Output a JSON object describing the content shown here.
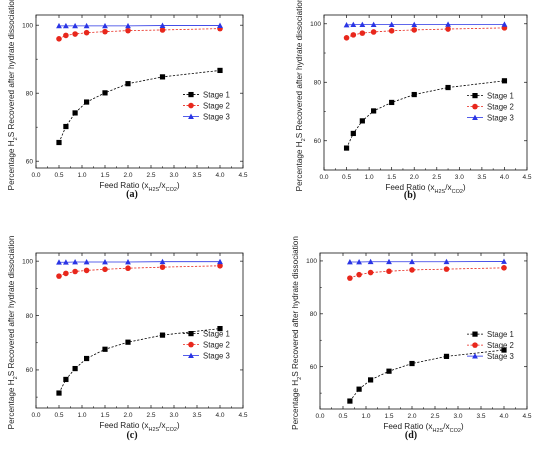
{
  "chart_data": [
    {
      "type": "scatter",
      "panel": "(a)",
      "xlabel": "Feed Ratio (x_H2S/x_CO2)",
      "ylabel": "Percentage H2S Recovered after hydrate dissociation",
      "xlim": [
        0.0,
        4.5
      ],
      "ylim": [
        58,
        103
      ],
      "xticks": [
        "0.0",
        "0.5",
        "1.0",
        "1.5",
        "2.0",
        "2.5",
        "3.0",
        "3.5",
        "4.0",
        "4.5"
      ],
      "yticks": [
        "60",
        "80",
        "100"
      ],
      "ytick_values": [
        60,
        80,
        100
      ],
      "grid": false,
      "legend_position": "right",
      "x": [
        0.5,
        0.65,
        0.85,
        1.1,
        1.5,
        2.0,
        2.75,
        4.0
      ],
      "series": [
        {
          "name": "Stage 1",
          "color": "#000000",
          "marker": "square",
          "values": [
            65.5,
            70.2,
            74.2,
            77.4,
            80.1,
            82.8,
            84.8,
            86.7
          ]
        },
        {
          "name": "Stage 2",
          "color": "#e8271c",
          "marker": "circle",
          "values": [
            96.0,
            97.0,
            97.4,
            97.8,
            98.1,
            98.4,
            98.6,
            99.0
          ]
        },
        {
          "name": "Stage 3",
          "color": "#2a35e5",
          "marker": "triangle",
          "values": [
            99.8,
            99.8,
            99.8,
            99.8,
            99.8,
            99.8,
            99.9,
            99.9
          ]
        }
      ]
    },
    {
      "type": "scatter",
      "panel": "(b)",
      "xlabel": "Feed Ratio (x_H2S/x_CO2)",
      "ylabel": "Percentage H2S Recovered after hydrate dissociation",
      "xlim": [
        0.0,
        4.5
      ],
      "ylim": [
        50,
        103
      ],
      "xticks": [
        "0.0",
        "0.5",
        "1.0",
        "1.5",
        "2.0",
        "2.5",
        "3.0",
        "3.5",
        "4.0",
        "4.5"
      ],
      "yticks": [
        "60",
        "80",
        "100"
      ],
      "ytick_values": [
        60,
        80,
        100
      ],
      "grid": false,
      "legend_position": "right",
      "x": [
        0.5,
        0.65,
        0.85,
        1.1,
        1.5,
        2.0,
        2.75,
        4.0
      ],
      "series": [
        {
          "name": "Stage 1",
          "color": "#000000",
          "marker": "square",
          "values": [
            57.5,
            62.5,
            66.8,
            70.2,
            73.1,
            75.8,
            78.2,
            80.5
          ]
        },
        {
          "name": "Stage 2",
          "color": "#e8271c",
          "marker": "circle",
          "values": [
            95.2,
            96.2,
            96.8,
            97.2,
            97.6,
            97.9,
            98.2,
            98.6
          ]
        },
        {
          "name": "Stage 3",
          "color": "#2a35e5",
          "marker": "triangle",
          "values": [
            99.6,
            99.7,
            99.7,
            99.7,
            99.7,
            99.7,
            99.8,
            99.8
          ]
        }
      ]
    },
    {
      "type": "scatter",
      "panel": "(c)",
      "xlabel": "Feed Ratio (x_H2S/x_CO2)",
      "ylabel": "Percentage H2S Recovered after hydrate dissociation",
      "xlim": [
        0.0,
        4.5
      ],
      "ylim": [
        46,
        103
      ],
      "xticks": [
        "0.0",
        "0.5",
        "1.0",
        "1.5",
        "2.0",
        "2.5",
        "3.0",
        "3.5",
        "4.0",
        "4.5"
      ],
      "yticks": [
        "60",
        "80",
        "100"
      ],
      "ytick_values": [
        60,
        80,
        100
      ],
      "grid": false,
      "legend_position": "right",
      "x": [
        0.5,
        0.65,
        0.85,
        1.1,
        1.5,
        2.0,
        2.75,
        4.0
      ],
      "series": [
        {
          "name": "Stage 1",
          "color": "#000000",
          "marker": "square",
          "values": [
            51.5,
            56.5,
            60.5,
            64.2,
            67.6,
            70.2,
            72.8,
            75.2
          ]
        },
        {
          "name": "Stage 2",
          "color": "#e8271c",
          "marker": "circle",
          "values": [
            94.5,
            95.5,
            96.2,
            96.6,
            97.0,
            97.4,
            97.8,
            98.3
          ]
        },
        {
          "name": "Stage 3",
          "color": "#2a35e5",
          "marker": "triangle",
          "values": [
            99.6,
            99.6,
            99.7,
            99.7,
            99.7,
            99.7,
            99.8,
            99.8
          ]
        }
      ]
    },
    {
      "type": "scatter",
      "panel": "(d)",
      "xlabel": "Feed Ratio (x_H2S/x_CO2)",
      "ylabel": "Percentage H2S Recovered after hydrate dissociation",
      "xlim": [
        0.0,
        4.5
      ],
      "ylim": [
        44,
        103
      ],
      "xticks": [
        "0.0",
        "0.5",
        "1.0",
        "1.5",
        "2.0",
        "2.5",
        "3.0",
        "3.5",
        "4.0",
        "4.5"
      ],
      "yticks": [
        "60",
        "80",
        "100"
      ],
      "ytick_values": [
        60,
        80,
        100
      ],
      "grid": false,
      "legend_position": "right",
      "x": [
        0.65,
        0.85,
        1.1,
        1.5,
        2.0,
        2.75,
        4.0
      ],
      "series": [
        {
          "name": "Stage 1",
          "color": "#000000",
          "marker": "square",
          "values": [
            47.0,
            51.5,
            55.0,
            58.3,
            61.2,
            63.9,
            66.3
          ]
        },
        {
          "name": "Stage 2",
          "color": "#e8271c",
          "marker": "circle",
          "values": [
            93.5,
            94.8,
            95.6,
            96.1,
            96.6,
            96.9,
            97.4
          ]
        },
        {
          "name": "Stage 3",
          "color": "#2a35e5",
          "marker": "triangle",
          "values": [
            99.6,
            99.6,
            99.7,
            99.7,
            99.7,
            99.7,
            99.8
          ]
        }
      ]
    }
  ]
}
